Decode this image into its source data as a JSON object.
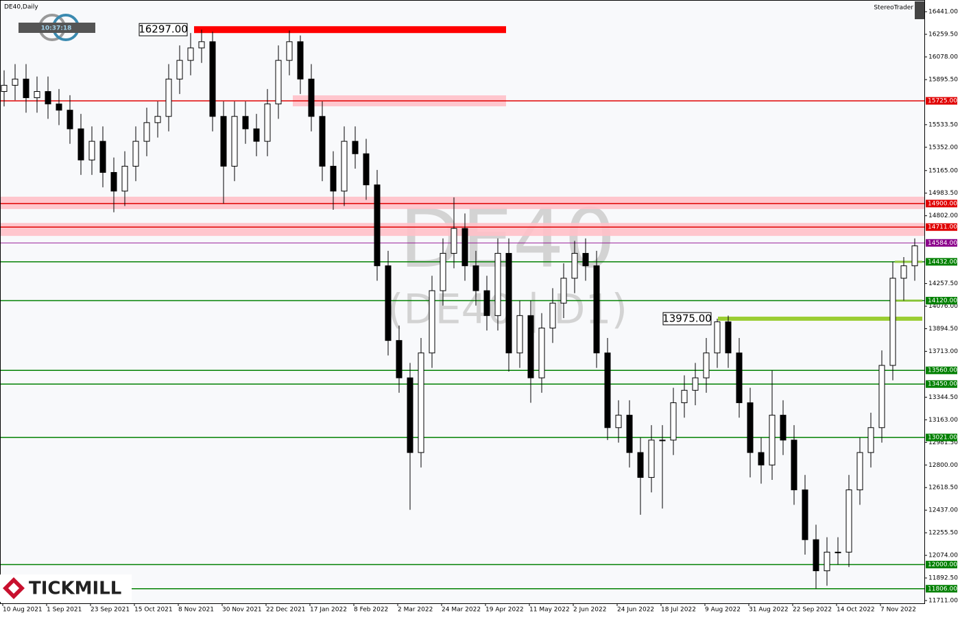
{
  "chart_data": {
    "type": "candlestick",
    "title": "DE40,Daily",
    "brand": "StereoTrader",
    "clock": "10:37:18",
    "watermark": "DE40",
    "watermark_sub": "(DE40 | D1)",
    "logo": "TICKMILL",
    "categories": [
      "10 Aug 2021",
      null,
      null,
      null,
      "1 Sep 2021",
      null,
      null,
      null,
      "23 Sep 2021",
      null,
      null,
      null,
      "15 Oct 2021",
      null,
      null,
      null,
      "8 Nov 2021",
      null,
      null,
      null,
      "30 Nov 2021",
      null,
      null,
      null,
      "22 Dec 2021",
      null,
      null,
      null,
      "17 Jan 2022",
      null,
      null,
      null,
      "8 Feb 2022",
      null,
      null,
      null,
      "2 Mar 2022",
      null,
      null,
      null,
      "24 Mar 2022",
      null,
      null,
      null,
      "19 Apr 2022",
      null,
      null,
      null,
      "11 May 2022",
      null,
      null,
      null,
      "2 Jun 2022",
      null,
      null,
      null,
      "24 Jun 2022",
      null,
      null,
      null,
      "18 Jul 2022",
      null,
      null,
      null,
      "9 Aug 2022",
      null,
      null,
      null,
      "31 Aug 2022",
      null,
      null,
      null,
      "22 Sep 2022",
      null,
      null,
      null,
      "14 Oct 2022",
      null,
      null,
      null,
      "7 Nov 2022",
      null,
      null,
      null
    ],
    "open": [
      15800,
      15850,
      15900,
      15750,
      15800,
      15700,
      15650,
      15500,
      15250,
      15400,
      15150,
      15000,
      15200,
      15400,
      15550,
      15600,
      15900,
      16050,
      16150,
      16200,
      15600,
      15200,
      15600,
      15500,
      15400,
      15700,
      16050,
      16200,
      15900,
      15600,
      15200,
      15000,
      15400,
      15300,
      15050,
      14400,
      13800,
      13500,
      12900,
      13700,
      14200,
      14500,
      14700,
      14400,
      14200,
      14000,
      14500,
      13700,
      14000,
      13500,
      13900,
      14100,
      14300,
      14500,
      14400,
      13700,
      13100,
      13200,
      12900,
      12700,
      13000,
      13000,
      13300,
      13400,
      13500,
      13700,
      13950,
      13700,
      13300,
      12900,
      12800,
      13200,
      13000,
      12600,
      12200,
      11950,
      12100,
      12100,
      12600,
      12900,
      13100,
      13600,
      14300,
      14400
    ],
    "high": [
      15970,
      16020,
      16020,
      15920,
      15920,
      15820,
      15770,
      15620,
      15520,
      15520,
      15270,
      15320,
      15520,
      15670,
      15720,
      16020,
      16170,
      16270,
      16297,
      16280,
      15720,
      15720,
      15720,
      15620,
      15820,
      16170,
      16290,
      16250,
      16020,
      15720,
      15320,
      15520,
      15520,
      15420,
      15170,
      14520,
      13920,
      13620,
      13820,
      14320,
      14620,
      14950,
      14820,
      14520,
      14320,
      14620,
      14620,
      14120,
      14120,
      14020,
      14220,
      14420,
      14600,
      14620,
      14520,
      13820,
      13320,
      13320,
      13020,
      13120,
      13120,
      13420,
      13520,
      13620,
      13820,
      13975,
      14000,
      13820,
      13420,
      13020,
      13560,
      13320,
      13120,
      12720,
      12320,
      12220,
      12220,
      12720,
      13020,
      13220,
      13720,
      14432,
      14470,
      14620
    ],
    "low": [
      15680,
      15730,
      15630,
      15630,
      15580,
      15530,
      15380,
      15130,
      15130,
      15030,
      14830,
      14880,
      15080,
      15280,
      15430,
      15480,
      15780,
      15930,
      16030,
      15480,
      14900,
      15080,
      15380,
      15280,
      15280,
      15580,
      15930,
      15780,
      15480,
      15080,
      14850,
      14880,
      15180,
      14930,
      14280,
      13680,
      13380,
      12440,
      12780,
      13580,
      14080,
      14380,
      14280,
      14080,
      13880,
      13880,
      13550,
      13580,
      13300,
      13380,
      13780,
      13980,
      14180,
      14280,
      13580,
      13000,
      12980,
      12780,
      12400,
      12580,
      12450,
      12880,
      13180,
      13280,
      13380,
      13580,
      13580,
      13180,
      12700,
      12650,
      12680,
      12880,
      12480,
      12080,
      11806,
      11830,
      12000,
      11980,
      12480,
      12780,
      12980,
      13480,
      14120,
      14280
    ],
    "close": [
      15850,
      15900,
      15750,
      15800,
      15700,
      15650,
      15500,
      15250,
      15400,
      15150,
      15000,
      15200,
      15400,
      15550,
      15600,
      15900,
      16050,
      16150,
      16200,
      15600,
      15200,
      15600,
      15500,
      15400,
      15700,
      16050,
      16200,
      15900,
      15600,
      15200,
      15000,
      15400,
      15300,
      15050,
      14400,
      13800,
      13500,
      12900,
      13700,
      14200,
      14500,
      14700,
      14400,
      14200,
      14000,
      14500,
      13700,
      14000,
      13500,
      13900,
      14100,
      14300,
      14500,
      14400,
      13700,
      13100,
      13200,
      12900,
      12700,
      13000,
      13000,
      13300,
      13400,
      13500,
      13700,
      13950,
      13700,
      13300,
      12900,
      12800,
      13200,
      13000,
      12600,
      12200,
      11950,
      12100,
      12100,
      12600,
      12900,
      13100,
      13600,
      14300,
      14400,
      14560
    ],
    "ylim": [
      11689,
      16524
    ],
    "yticks": [
      {
        "value": 16441,
        "label": "16441.00"
      },
      {
        "value": 16259.5,
        "label": "16259.50"
      },
      {
        "value": 16078,
        "label": "16078.00"
      },
      {
        "value": 15895.5,
        "label": "15895.50"
      },
      {
        "value": 15533.5,
        "label": "15533.50"
      },
      {
        "value": 15352,
        "label": "15352.00"
      },
      {
        "value": 15165,
        "label": "15165.00"
      },
      {
        "value": 14983.5,
        "label": "14983.50"
      },
      {
        "value": 14802,
        "label": "14802.00"
      },
      {
        "value": 14257.5,
        "label": "14257.50"
      },
      {
        "value": 14076,
        "label": "14076.00"
      },
      {
        "value": 13894.5,
        "label": "13894.50"
      },
      {
        "value": 13713,
        "label": "13713.00"
      },
      {
        "value": 13344.5,
        "label": "13344.50"
      },
      {
        "value": 13163,
        "label": "13163.00"
      },
      {
        "value": 12981.5,
        "label": "12981.50"
      },
      {
        "value": 12800,
        "label": "12800.00"
      },
      {
        "value": 12618.5,
        "label": "12618.50"
      },
      {
        "value": 12437,
        "label": "12437.00"
      },
      {
        "value": 12255.5,
        "label": "12255.50"
      },
      {
        "value": 12074,
        "label": "12074.00"
      },
      {
        "value": 11892.5,
        "label": "11892.50"
      },
      {
        "value": 11711,
        "label": "11711.00"
      }
    ],
    "levels": [
      {
        "value": 15725,
        "label": "15725.00",
        "color": "#e00000"
      },
      {
        "value": 14900,
        "label": "14900.00",
        "color": "#e00000"
      },
      {
        "value": 14711,
        "label": "14711.00",
        "color": "#e00000"
      },
      {
        "value": 14584,
        "label": "14584.00",
        "color": "#8b008b"
      },
      {
        "value": 14432,
        "label": "14432.00",
        "color": "#008000"
      },
      {
        "value": 14120,
        "label": "14120.00",
        "color": "#008000"
      },
      {
        "value": 13560,
        "label": "13560.00",
        "color": "#008000"
      },
      {
        "value": 13450,
        "label": "13450.00",
        "color": "#008000"
      },
      {
        "value": 13021,
        "label": "13021.00",
        "color": "#008000"
      },
      {
        "value": 12000,
        "label": "12000.00",
        "color": "#008000"
      },
      {
        "value": 11806,
        "label": "11806.00",
        "color": "#008000"
      }
    ],
    "zones": [
      {
        "low": 14856,
        "high": 14955
      },
      {
        "low": 14640,
        "high": 14744
      },
      {
        "low": 15681,
        "high": 15769
      }
    ],
    "markers": [
      {
        "value": 16297,
        "label": "16297.00",
        "color": "#ff0000"
      },
      {
        "value": 13975,
        "label": "13975.00",
        "color": "#9acd32"
      }
    ]
  }
}
